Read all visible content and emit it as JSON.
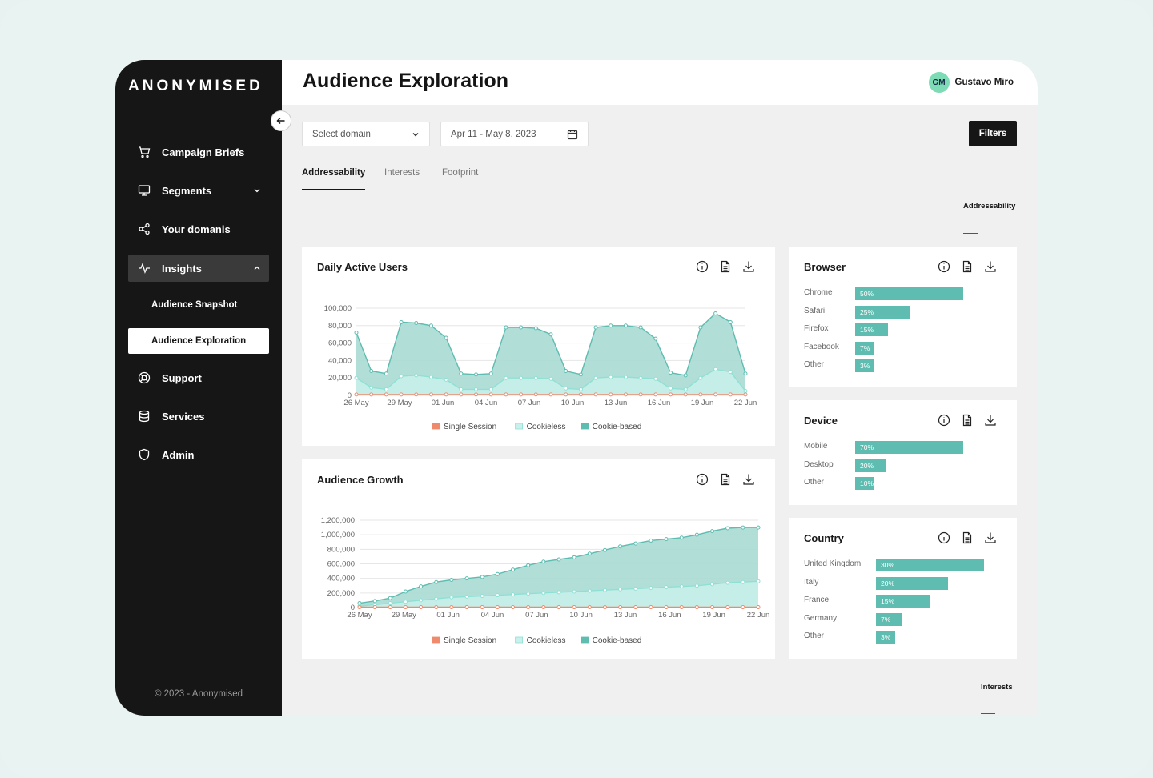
{
  "brand": "ANONYMISED",
  "sidebar": {
    "items": [
      {
        "label": "Campaign Briefs",
        "icon": "cart-icon"
      },
      {
        "label": "Segments",
        "icon": "monitor-icon"
      },
      {
        "label": "Your domanis",
        "icon": "share-icon"
      },
      {
        "label": "Insights",
        "icon": "activity-icon"
      },
      {
        "label": "Support",
        "icon": "lifebuoy-icon"
      },
      {
        "label": "Services",
        "icon": "database-icon"
      },
      {
        "label": "Admin",
        "icon": "shield-icon"
      }
    ],
    "subitems": [
      "Audience Snapshot",
      "Audience Exploration"
    ],
    "footer": "© 2023 - Anonymised"
  },
  "header": {
    "title": "Audience Exploration",
    "user_initials": "GM",
    "user_name": "Gustavo Miro"
  },
  "controls": {
    "domain_placeholder": "Select domain",
    "date_range": "Apr 11 - May 8, 2023",
    "filters_label": "Filters"
  },
  "tabs": [
    "Addressability",
    "Interests",
    "Footprint"
  ],
  "sections": {
    "addressability": "Addressability",
    "interests": "Interests"
  },
  "colors": {
    "teal": "#5ebcb0",
    "teal_fill": "#a9dcd4",
    "light_fill": "#c9f0ea",
    "orange": "#f08a6c"
  },
  "cards": {
    "dau_title": "Daily Active Users",
    "growth_title": "Audience Growth",
    "browser_title": "Browser",
    "device_title": "Device",
    "country_title": "Country"
  },
  "chart_data": [
    {
      "type": "area",
      "title": "Daily Active Users",
      "x_ticks": [
        "26 May",
        "29 May",
        "01 Jun",
        "04 Jun",
        "07 Jun",
        "10 Jun",
        "13 Jun",
        "16 Jun",
        "19 Jun",
        "22 Jun"
      ],
      "y_ticks": [
        "100,000",
        "80,000",
        "60,000",
        "40,000",
        "20,000",
        "0"
      ],
      "ylim": [
        0,
        100000
      ],
      "legend": [
        "Single Session",
        "Cookieless",
        "Cookie-based"
      ],
      "legend_position": "bottom-center",
      "grid": true,
      "series": [
        {
          "name": "Cookie-based",
          "values": [
            72000,
            28000,
            25000,
            84000,
            83000,
            80000,
            66000,
            25000,
            24000,
            25000,
            78000,
            78000,
            77000,
            70000,
            28000,
            24000,
            78000,
            80000,
            80000,
            78000,
            65000,
            26000,
            23000,
            78000,
            94000,
            84000,
            25000
          ]
        },
        {
          "name": "Cookieless",
          "values": [
            20000,
            9000,
            7000,
            22000,
            23000,
            21000,
            18000,
            7000,
            7000,
            7000,
            20000,
            20000,
            20000,
            19000,
            8000,
            7000,
            20000,
            21000,
            21000,
            20000,
            19000,
            8000,
            7000,
            20000,
            30000,
            27000,
            5000
          ]
        },
        {
          "name": "Single Session",
          "values": [
            1000,
            1000,
            1000,
            1000,
            1000,
            1000,
            1000,
            1000,
            1000,
            1000,
            1000,
            1000,
            1000,
            1000,
            1000,
            1000,
            1000,
            1000,
            1000,
            1000,
            1000,
            1000,
            1000,
            1000,
            1000,
            1000,
            1000
          ]
        }
      ]
    },
    {
      "type": "area",
      "title": "Audience Growth",
      "x_ticks": [
        "26 May",
        "29 May",
        "01 Jun",
        "04 Jun",
        "07 Jun",
        "10 Jun",
        "13 Jun",
        "16 Jun",
        "19 Jun",
        "22 Jun"
      ],
      "y_ticks": [
        "1,200,000",
        "1,000,000",
        "800,000",
        "600,000",
        "400,000",
        "200,000",
        "0"
      ],
      "ylim": [
        0,
        1200000
      ],
      "legend": [
        "Single Session",
        "Cookieless",
        "Cookie-based"
      ],
      "legend_position": "bottom-center",
      "grid": true,
      "series": [
        {
          "name": "Cookie-based",
          "values": [
            60000,
            90000,
            130000,
            220000,
            290000,
            350000,
            380000,
            400000,
            420000,
            460000,
            520000,
            580000,
            630000,
            660000,
            690000,
            740000,
            790000,
            840000,
            880000,
            920000,
            940000,
            960000,
            1000000,
            1050000,
            1090000,
            1100000,
            1100000
          ]
        },
        {
          "name": "Cookieless",
          "values": [
            20000,
            40000,
            60000,
            80000,
            100000,
            120000,
            140000,
            150000,
            160000,
            170000,
            180000,
            190000,
            200000,
            210000,
            220000,
            230000,
            240000,
            250000,
            260000,
            270000,
            280000,
            290000,
            300000,
            320000,
            340000,
            350000,
            360000
          ]
        },
        {
          "name": "Single Session",
          "values": [
            5000,
            5000,
            5000,
            5000,
            5000,
            5000,
            5000,
            5000,
            5000,
            5000,
            5000,
            5000,
            5000,
            5000,
            5000,
            5000,
            5000,
            5000,
            5000,
            5000,
            5000,
            5000,
            5000,
            5000,
            5000,
            5000,
            5000
          ]
        }
      ]
    },
    {
      "type": "bar",
      "title": "Browser",
      "categories": [
        "Chrome",
        "Safari",
        "Firefox",
        "Facebook",
        "Other"
      ],
      "values": [
        50,
        25,
        15,
        7,
        3
      ],
      "labels": [
        "50%",
        "25%",
        "15%",
        "7%",
        "3%"
      ]
    },
    {
      "type": "bar",
      "title": "Device",
      "categories": [
        "Mobile",
        "Desktop",
        "Other"
      ],
      "values": [
        70,
        20,
        10
      ],
      "labels": [
        "70%",
        "20%",
        "10%"
      ]
    },
    {
      "type": "bar",
      "title": "Country",
      "categories": [
        "United Kingdom",
        "Italy",
        "France",
        "Germany",
        "Other"
      ],
      "values": [
        30,
        20,
        15,
        7,
        3
      ],
      "labels": [
        "30%",
        "20%",
        "15%",
        "7%",
        "3%"
      ]
    }
  ]
}
